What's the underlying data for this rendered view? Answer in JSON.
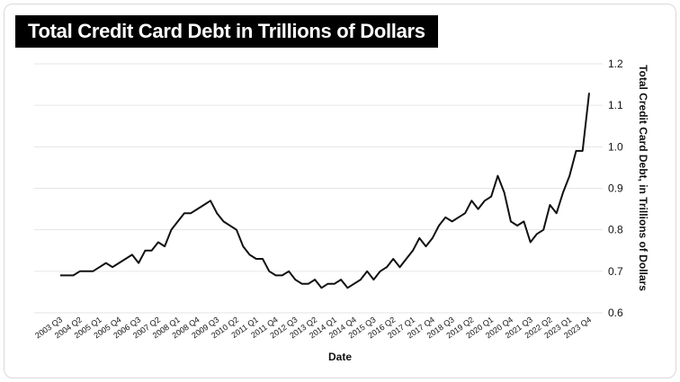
{
  "chart_data": {
    "type": "line",
    "title": "Total Credit Card Debt in Trillions of Dollars",
    "xlabel": "Date",
    "ylabel": "Total Credit Card Debt, in Trillions of Dollars",
    "ylim": [
      0.6,
      1.2
    ],
    "yticks": [
      "0.6",
      "0.7",
      "0.8",
      "0.9",
      "1.0",
      "1.1",
      "1.2"
    ],
    "grid": "horizontal",
    "x_tick_labels": [
      "2003 Q3",
      "2004 Q2",
      "2005 Q1",
      "2005 Q4",
      "2006 Q3",
      "2007 Q2",
      "2008 Q1",
      "2008 Q4",
      "2009 Q3",
      "2010 Q2",
      "2011 Q1",
      "2011 Q4",
      "2012 Q3",
      "2013 Q2",
      "2014 Q1",
      "2014 Q4",
      "2015 Q3",
      "2016 Q2",
      "2017 Q1",
      "2017 Q4",
      "2018 Q3",
      "2019 Q2",
      "2020 Q1",
      "2020 Q4",
      "2021 Q3",
      "2022 Q2",
      "2023 Q1",
      "2023 Q4"
    ],
    "series": [
      {
        "x": [
          "2003 Q3",
          "2003 Q4",
          "2004 Q1",
          "2004 Q2",
          "2004 Q3",
          "2004 Q4",
          "2005 Q1",
          "2005 Q2",
          "2005 Q3",
          "2005 Q4",
          "2006 Q1",
          "2006 Q2",
          "2006 Q3",
          "2006 Q4",
          "2007 Q1",
          "2007 Q2",
          "2007 Q3",
          "2007 Q4",
          "2008 Q1",
          "2008 Q2",
          "2008 Q3",
          "2008 Q4",
          "2009 Q1",
          "2009 Q2",
          "2009 Q3",
          "2009 Q4",
          "2010 Q1",
          "2010 Q2",
          "2010 Q3",
          "2010 Q4",
          "2011 Q1",
          "2011 Q2",
          "2011 Q3",
          "2011 Q4",
          "2012 Q1",
          "2012 Q2",
          "2012 Q3",
          "2012 Q4",
          "2013 Q1",
          "2013 Q2",
          "2013 Q3",
          "2013 Q4",
          "2014 Q1",
          "2014 Q2",
          "2014 Q3",
          "2014 Q4",
          "2015 Q1",
          "2015 Q2",
          "2015 Q3",
          "2015 Q4",
          "2016 Q1",
          "2016 Q2",
          "2016 Q3",
          "2016 Q4",
          "2017 Q1",
          "2017 Q2",
          "2017 Q3",
          "2017 Q4",
          "2018 Q1",
          "2018 Q2",
          "2018 Q3",
          "2018 Q4",
          "2019 Q1",
          "2019 Q2",
          "2019 Q3",
          "2019 Q4",
          "2020 Q1",
          "2020 Q2",
          "2020 Q3",
          "2020 Q4",
          "2021 Q1",
          "2021 Q2",
          "2021 Q3",
          "2021 Q4",
          "2022 Q1",
          "2022 Q2",
          "2022 Q3",
          "2022 Q4",
          "2023 Q1",
          "2023 Q2",
          "2023 Q3",
          "2023 Q4"
        ],
        "values": [
          0.69,
          0.69,
          0.69,
          0.7,
          0.7,
          0.7,
          0.71,
          0.72,
          0.71,
          0.72,
          0.73,
          0.74,
          0.72,
          0.75,
          0.75,
          0.77,
          0.76,
          0.8,
          0.82,
          0.84,
          0.84,
          0.85,
          0.86,
          0.87,
          0.84,
          0.82,
          0.81,
          0.8,
          0.76,
          0.74,
          0.73,
          0.73,
          0.7,
          0.69,
          0.69,
          0.7,
          0.68,
          0.67,
          0.67,
          0.68,
          0.66,
          0.67,
          0.67,
          0.68,
          0.66,
          0.67,
          0.68,
          0.7,
          0.68,
          0.7,
          0.71,
          0.73,
          0.71,
          0.73,
          0.75,
          0.78,
          0.76,
          0.78,
          0.81,
          0.83,
          0.82,
          0.83,
          0.84,
          0.87,
          0.85,
          0.87,
          0.88,
          0.93,
          0.89,
          0.82,
          0.81,
          0.82,
          0.77,
          0.79,
          0.8,
          0.86,
          0.84,
          0.89,
          0.93,
          0.99,
          0.99,
          1.13
        ]
      }
    ]
  }
}
